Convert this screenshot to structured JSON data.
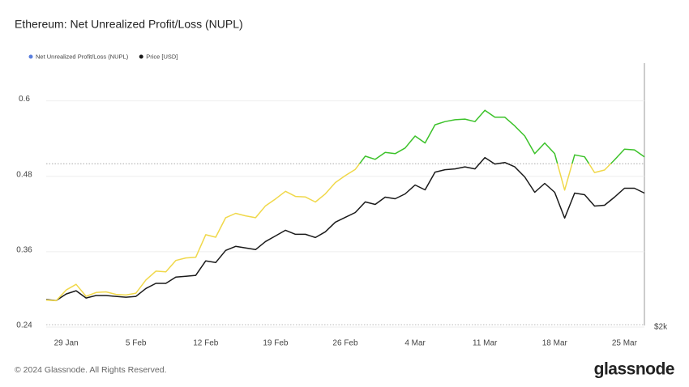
{
  "chart_data": {
    "type": "line",
    "title": "Ethereum: Net Unrealized Profit/Loss (NUPL)",
    "footer": "© 2024 Glassnode. All Rights Reserved.",
    "brand": "glassnode",
    "x": [
      "27 Jan",
      "28 Jan",
      "29 Jan",
      "30 Jan",
      "31 Jan",
      "1 Feb",
      "2 Feb",
      "3 Feb",
      "4 Feb",
      "5 Feb",
      "6 Feb",
      "7 Feb",
      "8 Feb",
      "9 Feb",
      "10 Feb",
      "11 Feb",
      "12 Feb",
      "13 Feb",
      "14 Feb",
      "15 Feb",
      "16 Feb",
      "17 Feb",
      "18 Feb",
      "19 Feb",
      "20 Feb",
      "21 Feb",
      "22 Feb",
      "23 Feb",
      "24 Feb",
      "25 Feb",
      "26 Feb",
      "27 Feb",
      "28 Feb",
      "29 Feb",
      "1 Mar",
      "2 Mar",
      "3 Mar",
      "4 Mar",
      "5 Mar",
      "6 Mar",
      "7 Mar",
      "8 Mar",
      "9 Mar",
      "10 Mar",
      "11 Mar",
      "12 Mar",
      "13 Mar",
      "14 Mar",
      "15 Mar",
      "16 Mar",
      "17 Mar",
      "18 Mar",
      "19 Mar",
      "20 Mar",
      "21 Mar",
      "22 Mar",
      "23 Mar",
      "24 Mar",
      "25 Mar",
      "26 Mar",
      "27 Mar"
    ],
    "xticks": [
      "29 Jan",
      "5 Feb",
      "12 Feb",
      "19 Feb",
      "26 Feb",
      "4 Mar",
      "11 Mar",
      "18 Mar",
      "25 Mar"
    ],
    "ylim": [
      0.24,
      0.66
    ],
    "yticks": [
      0.24,
      0.36,
      0.48,
      0.6
    ],
    "y2lim": [
      2000,
      6300
    ],
    "y2log": true,
    "y2ticks": [
      {
        "value": 2000,
        "label": "$2k"
      }
    ],
    "threshold": 0.5,
    "series": [
      {
        "name": "Net Unrealized Profit/Loss (NUPL)",
        "color": "#5b7fde",
        "color_above": "#3cc22a",
        "color_below": "#f0d84a",
        "values": [
          0.283,
          0.282,
          0.299,
          0.308,
          0.289,
          0.295,
          0.296,
          0.292,
          0.291,
          0.294,
          0.315,
          0.329,
          0.328,
          0.346,
          0.35,
          0.351,
          0.387,
          0.383,
          0.414,
          0.421,
          0.417,
          0.414,
          0.433,
          0.444,
          0.456,
          0.448,
          0.447,
          0.439,
          0.452,
          0.47,
          0.481,
          0.491,
          0.512,
          0.507,
          0.518,
          0.516,
          0.525,
          0.544,
          0.533,
          0.562,
          0.567,
          0.57,
          0.571,
          0.567,
          0.585,
          0.574,
          0.574,
          0.56,
          0.544,
          0.516,
          0.533,
          0.516,
          0.458,
          0.514,
          0.511,
          0.486,
          0.49,
          0.506,
          0.523,
          0.522,
          0.511
        ]
      },
      {
        "name": "Price [USD]",
        "color": "#1a1a1a",
        "axis": "y2",
        "values": [
          2254,
          2245,
          2310,
          2342,
          2269,
          2294,
          2294,
          2285,
          2277,
          2285,
          2366,
          2419,
          2419,
          2486,
          2495,
          2504,
          2667,
          2648,
          2791,
          2841,
          2821,
          2801,
          2901,
          2973,
          3047,
          2994,
          2994,
          2952,
          3026,
          3156,
          3223,
          3291,
          3446,
          3409,
          3519,
          3494,
          3569,
          3709,
          3632,
          3923,
          3964,
          3978,
          4013,
          3978,
          4179,
          4063,
          4091,
          4013,
          3841,
          3594,
          3735,
          3594,
          3212,
          3581,
          3556,
          3385,
          3397,
          3519,
          3657,
          3657,
          3581
        ]
      }
    ]
  }
}
